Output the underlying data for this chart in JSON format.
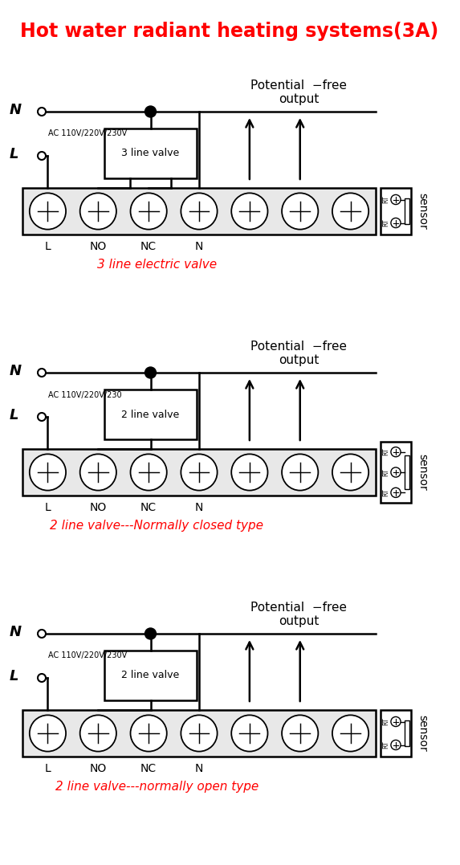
{
  "title": "Hot water radiant heating systems(3A)",
  "title_color": "#FF0000",
  "bg_color": "#FFFFFF",
  "line_color": "#000000",
  "diagrams": [
    {
      "label": "3 line electric valve",
      "valve_label": "3 line valve",
      "ac_label": "AC 110V/220V/230V",
      "n_lines": 3,
      "sensor_rows": 2
    },
    {
      "label": "2 line valve---Normally closed type",
      "valve_label": "2 line valve",
      "ac_label": "AC 110V/220V/230",
      "n_lines": 2,
      "sensor_rows": 3
    },
    {
      "label": "2 line valve---normally open type",
      "valve_label": "2 line valve",
      "ac_label": "AC 110V/220V/230V",
      "n_lines": 2,
      "sensor_rows": 2
    }
  ]
}
